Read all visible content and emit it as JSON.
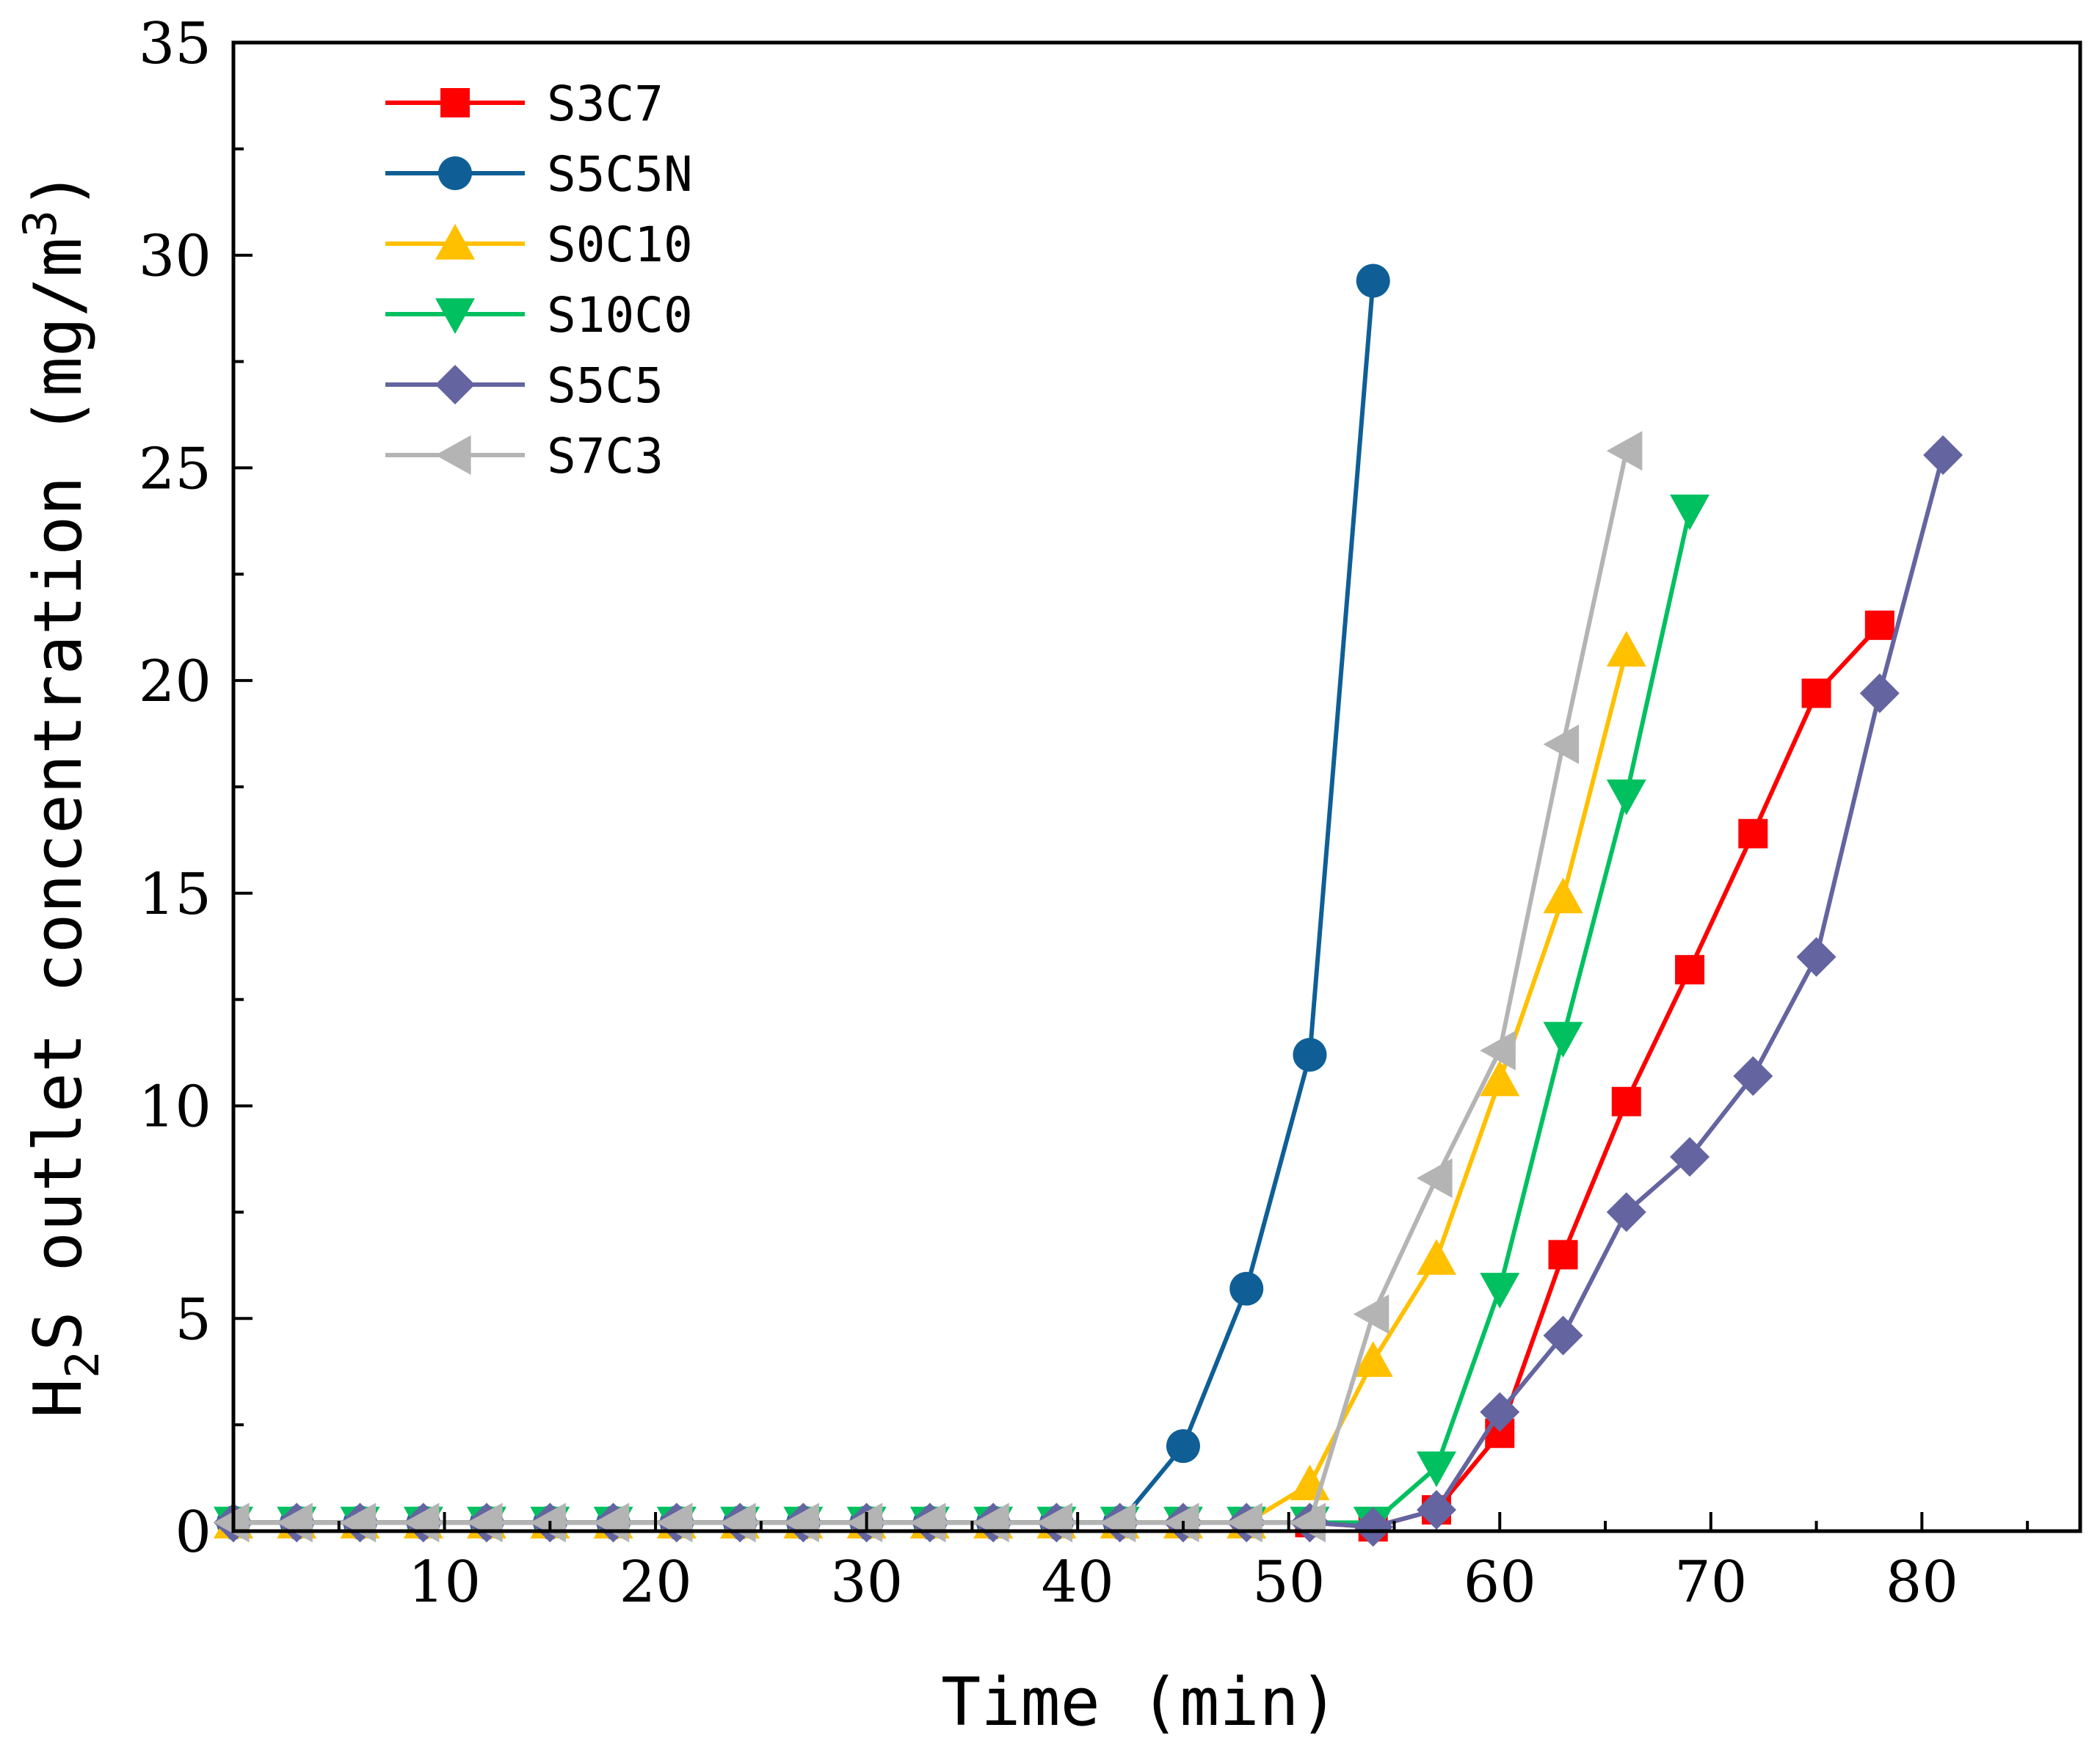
{
  "chart_data": {
    "type": "line",
    "title": "",
    "xlabel": "Time (min)",
    "ylabel": {
      "prefix": "H",
      "subscript": "2",
      "middle": "S outlet concentration (mg/m",
      "superscript": "3",
      "suffix": ")"
    },
    "xlim": [
      0,
      87.5
    ],
    "ylim": [
      0,
      35
    ],
    "xticks": [
      10,
      20,
      30,
      40,
      50,
      60,
      70,
      80
    ],
    "yticks": [
      0,
      5,
      10,
      15,
      20,
      25,
      30,
      35
    ],
    "legend_position": "top-left",
    "series": [
      {
        "name": "S3C7",
        "color": "#FF0000",
        "marker": "square",
        "x": [
          0,
          3,
          6,
          9,
          12,
          15,
          18,
          21,
          24,
          27,
          30,
          33,
          36,
          39,
          42,
          45,
          48,
          51,
          54,
          57,
          60,
          63,
          66,
          69,
          72,
          75,
          78
        ],
        "y": [
          0.2,
          0.2,
          0.2,
          0.2,
          0.2,
          0.2,
          0.2,
          0.2,
          0.2,
          0.2,
          0.2,
          0.2,
          0.2,
          0.2,
          0.2,
          0.2,
          0.2,
          0.2,
          0.1,
          0.5,
          2.3,
          6.5,
          10.1,
          13.2,
          16.4,
          19.7,
          21.3
        ]
      },
      {
        "name": "S5C5N",
        "color": "#0F5F96",
        "marker": "circle",
        "x": [
          0,
          3,
          6,
          9,
          12,
          15,
          18,
          21,
          24,
          27,
          30,
          33,
          36,
          39,
          42,
          45,
          48,
          51,
          54
        ],
        "y": [
          0.2,
          0.2,
          0.2,
          0.2,
          0.2,
          0.2,
          0.2,
          0.2,
          0.2,
          0.2,
          0.2,
          0.2,
          0.2,
          0.2,
          0.2,
          2.0,
          5.7,
          11.2,
          29.4
        ]
      },
      {
        "name": "S0C10",
        "color": "#FFC000",
        "marker": "triangle-up",
        "x": [
          0,
          3,
          6,
          9,
          12,
          15,
          18,
          21,
          24,
          27,
          30,
          33,
          36,
          39,
          42,
          45,
          48,
          51,
          54,
          57,
          60,
          63,
          66
        ],
        "y": [
          0.2,
          0.2,
          0.2,
          0.2,
          0.2,
          0.2,
          0.2,
          0.2,
          0.2,
          0.2,
          0.2,
          0.2,
          0.2,
          0.2,
          0.2,
          0.2,
          0.2,
          1.1,
          4.0,
          6.4,
          10.6,
          14.9,
          20.7
        ]
      },
      {
        "name": "S10C0",
        "color": "#00C060",
        "marker": "triangle-down",
        "x": [
          0,
          3,
          6,
          9,
          12,
          15,
          18,
          21,
          24,
          27,
          30,
          33,
          36,
          39,
          42,
          45,
          48,
          51,
          54,
          57,
          60,
          63,
          66,
          69
        ],
        "y": [
          0.2,
          0.2,
          0.2,
          0.2,
          0.2,
          0.2,
          0.2,
          0.2,
          0.2,
          0.2,
          0.2,
          0.2,
          0.2,
          0.2,
          0.2,
          0.2,
          0.2,
          0.2,
          0.2,
          1.5,
          5.7,
          11.6,
          17.3,
          24.0
        ]
      },
      {
        "name": "S5C5",
        "color": "#6464A0",
        "marker": "diamond",
        "x": [
          0,
          3,
          6,
          9,
          12,
          15,
          18,
          21,
          24,
          27,
          30,
          33,
          36,
          39,
          42,
          45,
          48,
          51,
          54,
          57,
          60,
          63,
          66,
          69,
          72,
          75,
          78,
          81
        ],
        "y": [
          0.2,
          0.2,
          0.2,
          0.2,
          0.2,
          0.2,
          0.2,
          0.2,
          0.2,
          0.2,
          0.2,
          0.2,
          0.2,
          0.2,
          0.2,
          0.2,
          0.2,
          0.2,
          0.1,
          0.5,
          2.8,
          4.6,
          7.5,
          8.8,
          10.7,
          13.5,
          19.7,
          25.3
        ]
      },
      {
        "name": "S7C3",
        "color": "#B4B4B4",
        "marker": "triangle-left",
        "x": [
          0,
          3,
          6,
          9,
          12,
          15,
          18,
          21,
          24,
          27,
          30,
          33,
          36,
          39,
          42,
          45,
          48,
          51,
          54,
          57,
          60,
          63,
          66
        ],
        "y": [
          0.2,
          0.2,
          0.2,
          0.2,
          0.2,
          0.2,
          0.2,
          0.2,
          0.2,
          0.2,
          0.2,
          0.2,
          0.2,
          0.2,
          0.2,
          0.2,
          0.2,
          0.2,
          5.1,
          8.3,
          11.3,
          18.5,
          25.4
        ]
      }
    ]
  }
}
